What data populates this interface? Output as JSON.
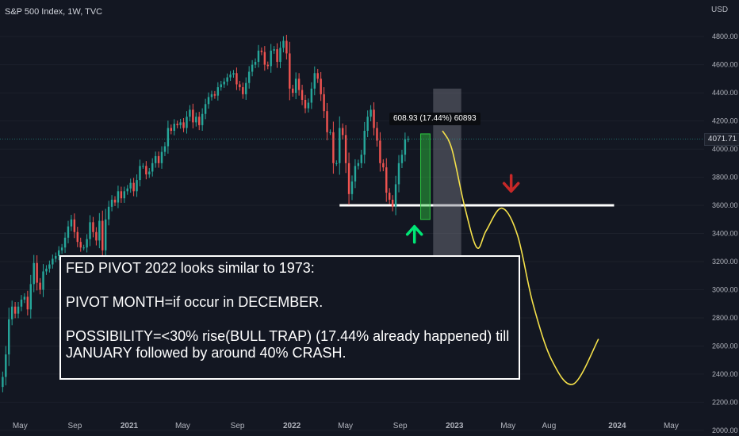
{
  "header": {
    "symbol": "S&P 500 Index, 1W, TVC",
    "currency": "USD"
  },
  "price_tag": "4071.71",
  "measure_label": "608.93 (17.44%) 60893",
  "annotation": {
    "line1": "FED PIVOT 2022 looks similar to 1973:",
    "line2": "PIVOT MONTH=if occur in DECEMBER.",
    "line3": "POSSIBILITY=<30% rise(BULL TRAP) (17.44% already happened) till",
    "line4": "JANUARY followed by around 40% CRASH."
  },
  "colors": {
    "background": "#131722",
    "up": "#26a69a",
    "down": "#ef5350",
    "projection": "#f5e14a",
    "support": "#ffffff",
    "up_arrow": "#00e676",
    "down_arrow": "#c62828",
    "highlight_box": "#2ecc40"
  },
  "chart_data": {
    "type": "candlestick",
    "interval": "1W",
    "y_ticks": [
      2000,
      2200,
      2400,
      2600,
      2800,
      3000,
      3200,
      3400,
      3600,
      3800,
      4000,
      4200,
      4400,
      4600,
      4800
    ],
    "y_tick_labels": [
      "2000.00",
      "2200.00",
      "2400.00",
      "2600.00",
      "2800.00",
      "3000.00",
      "3200.00",
      "3400.00",
      "3600.00",
      "3800.00",
      "4000.00",
      "4200.00",
      "4400.00",
      "4600.00",
      "4800.00"
    ],
    "ylim": [
      1960,
      5060
    ],
    "x_ticks": [
      {
        "label": "May",
        "date": "2020-05-01"
      },
      {
        "label": "Sep",
        "date": "2020-09-01"
      },
      {
        "label": "2021",
        "date": "2021-01-01"
      },
      {
        "label": "May",
        "date": "2021-05-01"
      },
      {
        "label": "Sep",
        "date": "2021-09-01"
      },
      {
        "label": "2022",
        "date": "2022-01-01"
      },
      {
        "label": "May",
        "date": "2022-05-01"
      },
      {
        "label": "Sep",
        "date": "2022-09-01"
      },
      {
        "label": "2023",
        "date": "2023-01-01"
      },
      {
        "label": "May",
        "date": "2023-05-01"
      },
      {
        "label": "Aug",
        "date": "2023-08-01"
      },
      {
        "label": "2024",
        "date": "2024-01-01"
      },
      {
        "label": "May",
        "date": "2024-05-01"
      }
    ],
    "xlim": [
      "2020-03-17",
      "2024-07-14"
    ],
    "first_bar_date": "2020-03-23",
    "bars_close": [
      2380,
      2540,
      2790,
      2880,
      2830,
      2880,
      2930,
      2950,
      2860,
      3040,
      3190,
      3050,
      3000,
      3130,
      3150,
      3180,
      3220,
      3240,
      3280,
      3300,
      3370,
      3450,
      3500,
      3410,
      3340,
      3300,
      3300,
      3360,
      3480,
      3410,
      3350,
      3490,
      3280,
      3500,
      3590,
      3640,
      3620,
      3700,
      3650,
      3700,
      3720,
      3760,
      3700,
      3780,
      3880,
      3880,
      3820,
      3840,
      3900,
      3950,
      3900,
      3980,
      4020,
      4150,
      4130,
      4180,
      4170,
      4190,
      4150,
      4230,
      4280,
      4190,
      4230,
      4170,
      4250,
      4320,
      4370,
      4390,
      4380,
      4440,
      4460,
      4480,
      4510,
      4530,
      4540,
      4460,
      4440,
      4390,
      4470,
      4550,
      4600,
      4620,
      4700,
      4690,
      4600,
      4590,
      4700,
      4710,
      4620,
      4720,
      4770,
      4680,
      4430,
      4400,
      4500,
      4420,
      4350,
      4290,
      4330,
      4430,
      4540,
      4500,
      4390,
      4270,
      4120,
      4120,
      3900,
      3900,
      4150,
      4100,
      3900,
      3680,
      3770,
      3880,
      3900,
      3960,
      4130,
      4230,
      4280,
      4150,
      4060,
      3900,
      3870,
      3690,
      3640,
      3590,
      3750,
      3900,
      3960,
      4070,
      4071.71
    ],
    "projection_path": [
      {
        "x": "2022-12-05",
        "y": 4130
      },
      {
        "x": "2022-12-26",
        "y": 4000
      },
      {
        "x": "2023-01-23",
        "y": 3600
      },
      {
        "x": "2023-02-20",
        "y": 3300
      },
      {
        "x": "2023-03-13",
        "y": 3420
      },
      {
        "x": "2023-04-17",
        "y": 3580
      },
      {
        "x": "2023-05-22",
        "y": 3390
      },
      {
        "x": "2023-06-26",
        "y": 2900
      },
      {
        "x": "2023-08-07",
        "y": 2500
      },
      {
        "x": "2023-09-25",
        "y": 2330
      },
      {
        "x": "2023-11-20",
        "y": 2650
      }
    ],
    "support_line": {
      "y": 3600,
      "x_from": "2022-04-18",
      "x_to": "2023-12-25"
    },
    "measure_range": {
      "from": "2022-11-14",
      "to": "2023-01-16",
      "y0": 3240,
      "y1": 4430
    },
    "highlight_box": {
      "from": "2022-10-17",
      "to": "2022-11-07",
      "y0": 3500,
      "y1": 4108
    },
    "up_arrow": {
      "x": "2022-10-03",
      "y_tip": 3450
    },
    "down_arrow": {
      "x": "2023-05-08",
      "y_tip": 3700
    }
  }
}
